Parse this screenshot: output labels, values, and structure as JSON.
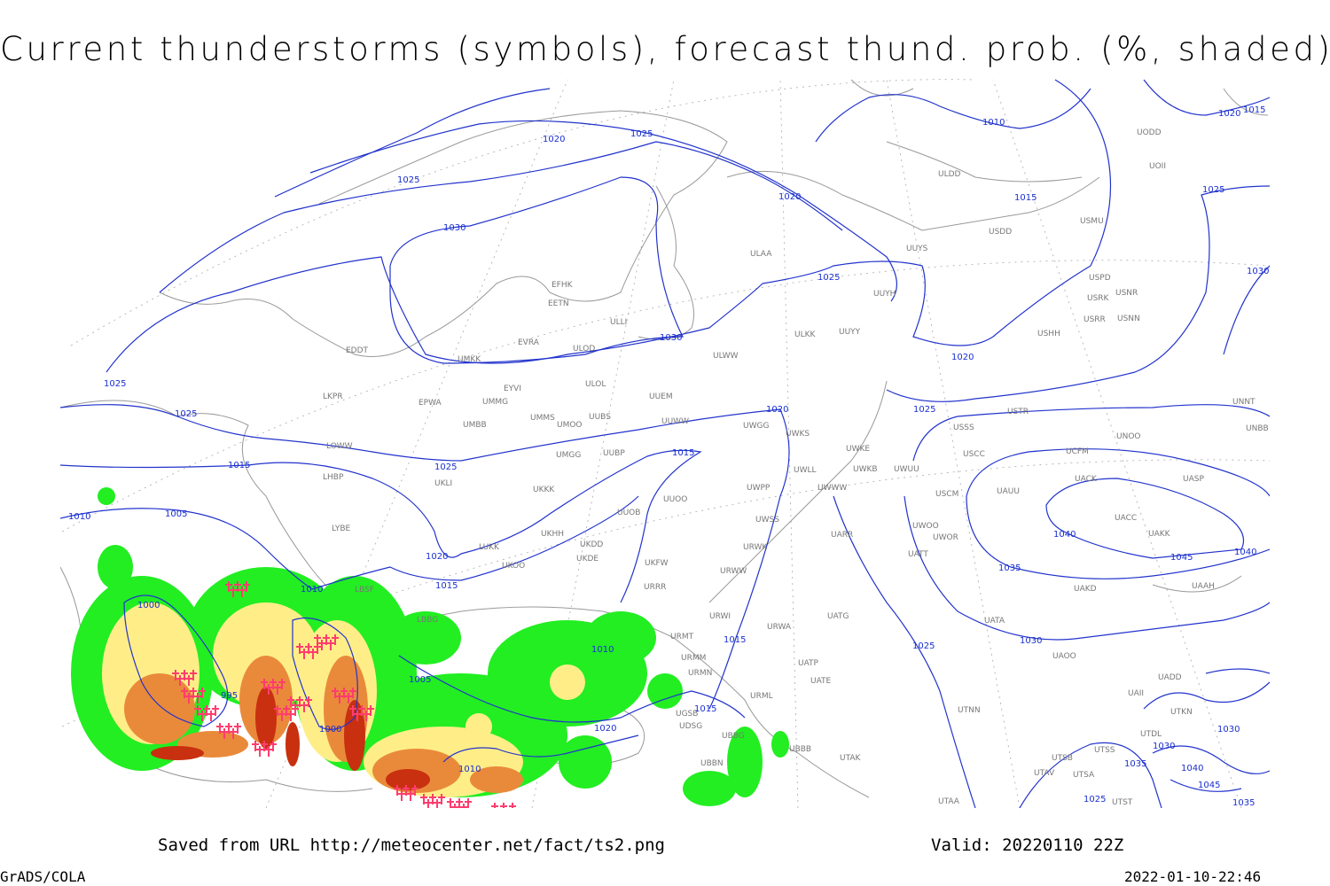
{
  "header": {
    "title": "Current thunderstorms (symbols), forecast thund. prob. (%, shaded)"
  },
  "footer": {
    "source": "Saved from URL http://meteocenter.net/fact/ts2.png",
    "valid": "Valid: 20220110 22Z",
    "software": "GrADS/COLA",
    "timestamp": "2022-01-10-22:46"
  },
  "map": {
    "stations": [
      "ULDD",
      "USDD",
      "USMU",
      "UODD",
      "UOII",
      "ULAA",
      "UUYS",
      "UUYH",
      "USPD",
      "USRK",
      "USNR",
      "USRR",
      "USNN",
      "USHH",
      "ULKK",
      "UUYY",
      "EFHK",
      "EETN",
      "ULLI",
      "EVRA",
      "ULOD",
      "UMKK",
      "EDDT",
      "ULWW",
      "ULOL",
      "EYVI",
      "UUEM",
      "EPWA",
      "UMMG",
      "LKPR",
      "UMMS",
      "UMOO",
      "UUBS",
      "UUWW",
      "UWGG",
      "UWKS",
      "UNNT",
      "UNBB",
      "USTR",
      "USSS",
      "UNOO",
      "UMBB",
      "LOWW",
      "UWKE",
      "UWKB",
      "UWUU",
      "UCFM",
      "USCC",
      "UMGG",
      "UUBP",
      "LHBP",
      "UKLI",
      "UWLL",
      "UWWW",
      "UWPP",
      "UACK",
      "UASP",
      "USCM",
      "UAUU",
      "UKKK",
      "UUOO",
      "UUOB",
      "UWSS",
      "UACC",
      "UAKK",
      "UWOO",
      "UWOR",
      "UARR",
      "LYBE",
      "UKHH",
      "LUKK",
      "UKDD",
      "UATT",
      "URWK",
      "UKOO",
      "UKDE",
      "URWW",
      "UKFW",
      "URRR",
      "UAKD",
      "UAAH",
      "UATG",
      "URWI",
      "UATA",
      "URMT",
      "URWA",
      "UAOO",
      "URMM",
      "UATP",
      "URMN",
      "UATE",
      "UADD",
      "UAII",
      "URML",
      "UTNN",
      "UTKN",
      "UBBB",
      "UTAK",
      "UTDL",
      "UTSS",
      "UTSB",
      "UTAV",
      "UTSA",
      "UTAA",
      "UTST",
      "UGSB",
      "UDSG",
      "UBBG",
      "UBBN",
      "LBBG",
      "LBSF"
    ],
    "isobar_labels": [
      "1020",
      "1025",
      "1010",
      "1020",
      "1015",
      "1025",
      "1020",
      "1015",
      "1030",
      "1025",
      "1025",
      "1030",
      "1030",
      "1020",
      "1025",
      "1025",
      "1020",
      "1025",
      "1025",
      "1015",
      "1015",
      "1010",
      "1005",
      "1040",
      "1045",
      "1040",
      "1020",
      "1035",
      "1015",
      "1010",
      "1000",
      "1015",
      "1030",
      "1025",
      "1010",
      "1005",
      "995",
      "1015",
      "1020",
      "1000",
      "1010",
      "1030",
      "1030",
      "1035",
      "1040",
      "1045",
      "1025",
      "1035"
    ]
  }
}
